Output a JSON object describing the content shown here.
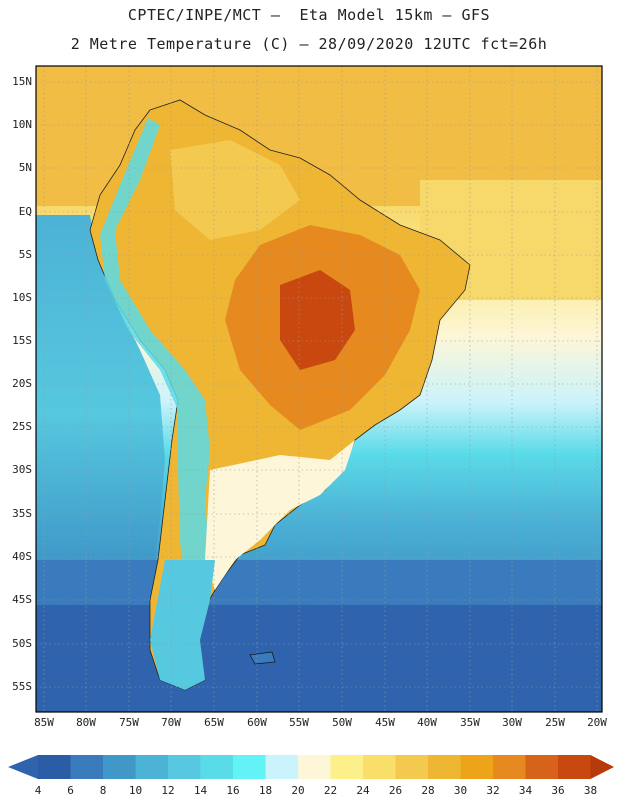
{
  "title": {
    "line1": "CPTEC/INPE/MCT –  Eta Model 15km – GFS",
    "line2": "2 Metre Temperature (C) – 28/09/2020 12UTC fct=26h"
  },
  "latitude_labels": [
    "15N",
    "10N",
    "5N",
    "EQ",
    "5S",
    "10S",
    "15S",
    "20S",
    "25S",
    "30S",
    "35S",
    "40S",
    "45S",
    "50S",
    "55S"
  ],
  "longitude_labels": [
    "85W",
    "80W",
    "75W",
    "70W",
    "65W",
    "60W",
    "55W",
    "50W",
    "45W",
    "40W",
    "35W",
    "30W",
    "25W",
    "20W"
  ],
  "colorbar": {
    "unit": "C",
    "labels": [
      "4",
      "6",
      "8",
      "10",
      "12",
      "14",
      "16",
      "18",
      "20",
      "22",
      "24",
      "26",
      "28",
      "30",
      "32",
      "34",
      "36",
      "38"
    ],
    "colors": [
      "#2b5da6",
      "#3a7bbd",
      "#3f98c8",
      "#4cb2d6",
      "#56c8df",
      "#5adbe8",
      "#63f2f5",
      "#cbf3fb",
      "#fdf6d8",
      "#fdf08a",
      "#f9de6a",
      "#f4c94f",
      "#efb634",
      "#eea419",
      "#e68a1f",
      "#d7631a",
      "#c8480f"
    ],
    "min_arrow_color": "#2f63ad",
    "max_arrow_color": "#b73a0b"
  },
  "map": {
    "region": "South America",
    "variable": "2 Metre Temperature"
  }
}
